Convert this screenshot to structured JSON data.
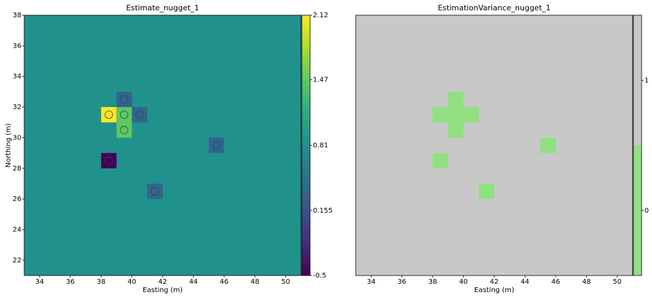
{
  "chart_data": [
    {
      "type": "heatmap",
      "title": "Estimate_nugget_1",
      "x_label": "Easting (m)",
      "y_label": "Northing (m)",
      "xlim": [
        33,
        51
      ],
      "ylim": [
        21,
        38
      ],
      "xticks": [
        34,
        36,
        38,
        40,
        42,
        44,
        46,
        48,
        50
      ],
      "yticks": [
        22,
        24,
        26,
        28,
        30,
        32,
        34,
        36,
        38
      ],
      "fill_value": 0.81,
      "cells": {
        "x": [
          38,
          39,
          39,
          40,
          39,
          38,
          45,
          41
        ],
        "y": [
          31,
          31,
          32,
          31,
          30,
          28,
          29,
          26
        ],
        "values": [
          2.12,
          1.47,
          0.35,
          0.35,
          1.47,
          -0.5,
          0.35,
          0.35
        ]
      },
      "samples": {
        "x": [
          38.5,
          39.5,
          39.5,
          40.5,
          39.5,
          38.5,
          45.5,
          41.5
        ],
        "y": [
          31.5,
          31.5,
          32.5,
          31.5,
          30.5,
          28.5,
          29.5,
          26.5
        ]
      },
      "colorscale": [
        "#440154",
        "#472d7b",
        "#3b528b",
        "#2c728e",
        "#21918c",
        "#28ae80",
        "#5ec962",
        "#addc30",
        "#fde725"
      ],
      "discrete": false,
      "clim": [
        -0.5,
        2.12
      ],
      "cticks": [
        -0.5,
        0.155,
        0.81,
        1.47,
        2.12
      ]
    },
    {
      "type": "heatmap",
      "title": "EstimationVariance_nugget_1",
      "x_label": "Easting (m)",
      "xlim": [
        33,
        51
      ],
      "ylim": [
        21,
        38
      ],
      "xticks": [
        34,
        36,
        38,
        40,
        42,
        44,
        46,
        48,
        50
      ],
      "fill_value": 1,
      "cells": {
        "x": [
          38,
          39,
          39,
          40,
          39,
          38,
          45,
          41
        ],
        "y": [
          31,
          31,
          32,
          31,
          30,
          28,
          29,
          26
        ],
        "values": [
          0,
          0,
          0,
          0,
          0,
          0,
          0,
          0
        ]
      },
      "colorscale": [
        "#90e080",
        "#c8c8c8"
      ],
      "discrete": true,
      "clim": [
        -0.5,
        1.5
      ],
      "cticks": [
        0,
        1
      ]
    }
  ]
}
